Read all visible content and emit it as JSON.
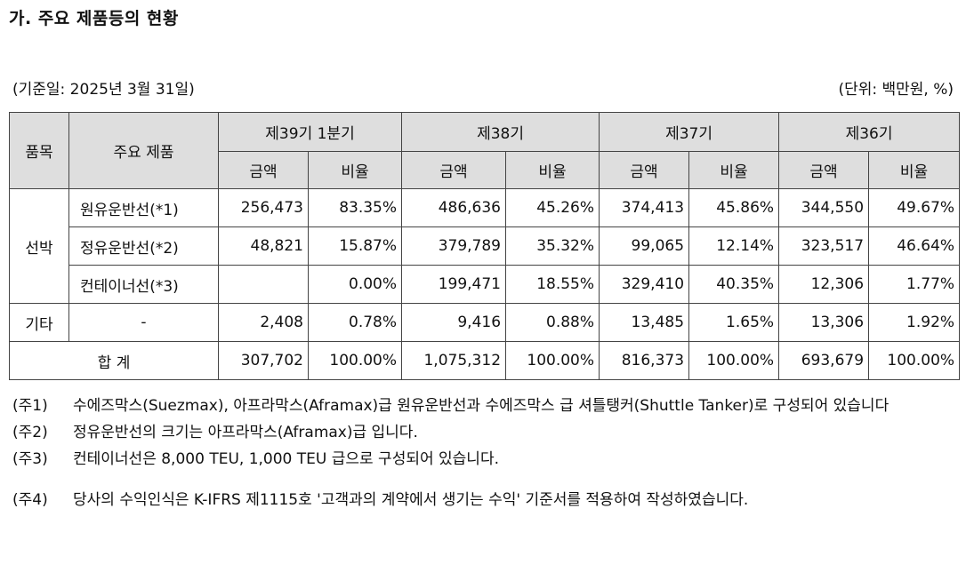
{
  "title": "가. 주요 제품등의 현황",
  "basis_date": "(기준일: 2025년 3월 31일)",
  "unit": "(단위: 백만원, %)",
  "table": {
    "header": {
      "item": "품목",
      "product": "주요 제품",
      "periods": [
        "제39기 1분기",
        "제38기",
        "제37기",
        "제36기"
      ],
      "amount": "금액",
      "ratio": "비율"
    },
    "rows": [
      {
        "group": "선박",
        "product": "원유운반선(*1)",
        "cells": [
          "256,473",
          "83.35%",
          "486,636",
          "45.26%",
          "374,413",
          "45.86%",
          "344,550",
          "49.67%"
        ]
      },
      {
        "group": "",
        "product": "정유운반선(*2)",
        "cells": [
          "48,821",
          "15.87%",
          "379,789",
          "35.32%",
          "99,065",
          "12.14%",
          "323,517",
          "46.64%"
        ]
      },
      {
        "group": "",
        "product": "컨테이너선(*3)",
        "cells": [
          "",
          "0.00%",
          "199,471",
          "18.55%",
          "329,410",
          "40.35%",
          "12,306",
          "1.77%"
        ]
      },
      {
        "group": "기타",
        "product": "-",
        "cells": [
          "2,408",
          "0.78%",
          "9,416",
          "0.88%",
          "13,485",
          "1.65%",
          "13,306",
          "1.92%"
        ]
      }
    ],
    "total": {
      "label": "합 계",
      "cells": [
        "307,702",
        "100.00%",
        "1,075,312",
        "100.00%",
        "816,373",
        "100.00%",
        "693,679",
        "100.00%"
      ]
    }
  },
  "notes": [
    {
      "label": "(주1)",
      "text": "수에즈막스(Suezmax), 아프라막스(Aframax)급 원유운반선과 수에즈막스 급 셔틀탱커(Shuttle Tanker)로 구성되어 있습니다"
    },
    {
      "label": "(주2)",
      "text": "정유운반선의 크기는 아프라막스(Aframax)급 입니다."
    },
    {
      "label": "(주3)",
      "text": "컨테이너선은 8,000 TEU, 1,000 TEU 급으로 구성되어 있습니다."
    },
    {
      "label": "(주4)",
      "text": "당사의 수익인식은 K-IFRS 제1115호 '고객과의 계약에서 생기는 수익' 기준서를 적용하여 작성하였습니다."
    }
  ]
}
